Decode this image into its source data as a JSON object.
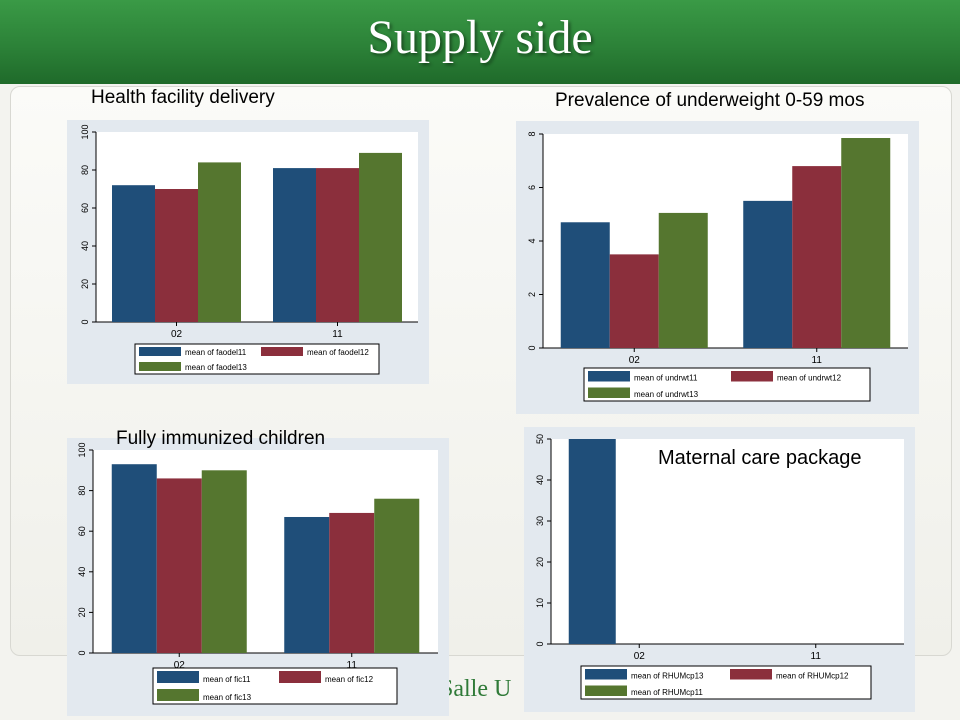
{
  "slide": {
    "title": "Supply side",
    "footer": "Salle U"
  },
  "colors": {
    "series1": "#1f4e79",
    "series2": "#8b2f3c",
    "series3": "#55762f",
    "banner": "#2c8238",
    "plot_bg": "#e3e9ef"
  },
  "chart_data": [
    {
      "type": "bar",
      "title": "Health facility delivery",
      "categories": [
        "02",
        "11"
      ],
      "ylim": [
        0,
        100
      ],
      "yticks": [
        0,
        20,
        40,
        60,
        80,
        100
      ],
      "grid": false,
      "legend_position": "bottom",
      "series": [
        {
          "name": "mean of faodel11",
          "values": [
            72,
            81
          ]
        },
        {
          "name": "mean of faodel12",
          "values": [
            70,
            81
          ]
        },
        {
          "name": "mean of faodel13",
          "values": [
            84,
            89
          ]
        }
      ]
    },
    {
      "type": "bar",
      "title": "Prevalence of underweight 0-59 mos",
      "categories": [
        "02",
        "11"
      ],
      "ylim": [
        0,
        8
      ],
      "yticks": [
        0,
        2,
        4,
        6,
        8
      ],
      "grid": false,
      "legend_position": "bottom",
      "series": [
        {
          "name": "mean of undrwt11",
          "values": [
            4.7,
            5.5
          ]
        },
        {
          "name": "mean of undrwt12",
          "values": [
            3.5,
            6.8
          ]
        },
        {
          "name": "mean of undrwt13",
          "values": [
            5.05,
            7.85
          ]
        }
      ]
    },
    {
      "type": "bar",
      "title": "Fully immunized children",
      "categories": [
        "02",
        "11"
      ],
      "ylim": [
        0,
        100
      ],
      "yticks": [
        0,
        20,
        40,
        60,
        80,
        100
      ],
      "grid": false,
      "legend_position": "bottom",
      "series": [
        {
          "name": "mean of fic11",
          "values": [
            93,
            67
          ]
        },
        {
          "name": "mean of fic12",
          "values": [
            86,
            69
          ]
        },
        {
          "name": "mean of fic13",
          "values": [
            90,
            76
          ]
        }
      ]
    },
    {
      "type": "bar",
      "title": "Maternal care package",
      "categories": [
        "02",
        "11"
      ],
      "ylim": [
        0,
        50
      ],
      "yticks": [
        0,
        10,
        20,
        30,
        40,
        50
      ],
      "grid": false,
      "legend_position": "bottom",
      "series": [
        {
          "name": "mean of RHUMcp13",
          "values": [
            50,
            0
          ]
        },
        {
          "name": "mean of RHUMcp12",
          "values": [
            0,
            0
          ]
        },
        {
          "name": "mean of RHUMcp11",
          "values": [
            0,
            0
          ]
        }
      ]
    }
  ]
}
